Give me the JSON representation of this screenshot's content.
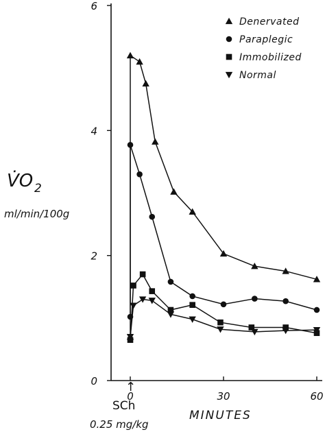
{
  "chart_data": {
    "type": "line",
    "ylabel_symbol": "V̇O",
    "ylabel_subscript": "2",
    "ylabel_units": "ml/min/100g",
    "xlabel": "MINUTES",
    "x_ticks": [
      "0",
      "30",
      "60"
    ],
    "y_ticks": [
      "0",
      "2",
      "4",
      "6"
    ],
    "xlim": [
      0,
      60
    ],
    "ylim": [
      0,
      6
    ],
    "annotation_arrow": "↑",
    "annotation_drug": "SCh",
    "annotation_dose": "0.25 mg/kg",
    "legend_position": "top-right",
    "series": [
      {
        "name": "Denervated",
        "marker": "triangle-up",
        "x": [
          0,
          0,
          3,
          5,
          8,
          14,
          20,
          30,
          40,
          50,
          60
        ],
        "y": [
          0.7,
          5.2,
          5.1,
          4.75,
          3.82,
          3.02,
          2.7,
          2.03,
          1.83,
          1.75,
          1.62
        ]
      },
      {
        "name": "Paraplegic",
        "marker": "circle",
        "x": [
          0,
          0,
          3,
          7,
          13,
          20,
          30,
          40,
          50,
          60
        ],
        "y": [
          1.02,
          3.77,
          3.3,
          2.62,
          1.58,
          1.35,
          1.22,
          1.31,
          1.27,
          1.13
        ]
      },
      {
        "name": "Immobilized",
        "marker": "square",
        "x": [
          0,
          1,
          4,
          7,
          13,
          20,
          29,
          39,
          50,
          60
        ],
        "y": [
          0.65,
          1.52,
          1.7,
          1.43,
          1.13,
          1.21,
          0.93,
          0.85,
          0.85,
          0.76
        ]
      },
      {
        "name": "Normal",
        "marker": "triangle-down",
        "x": [
          0,
          1,
          4,
          7,
          13,
          20,
          29,
          40,
          50,
          60
        ],
        "y": [
          0.7,
          1.2,
          1.3,
          1.28,
          1.06,
          0.98,
          0.82,
          0.78,
          0.8,
          0.81
        ]
      }
    ]
  }
}
